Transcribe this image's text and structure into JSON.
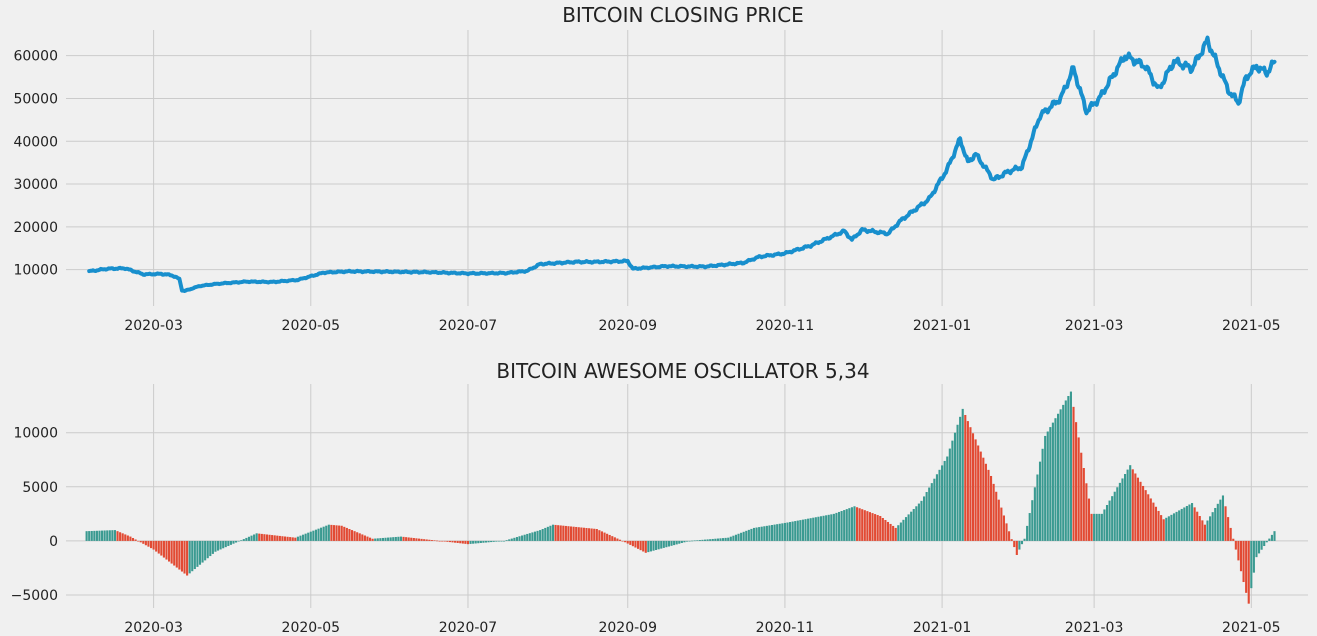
{
  "chart_data": [
    {
      "type": "line",
      "title": "BITCOIN CLOSING PRICE",
      "xlabel": "",
      "ylabel": "",
      "xlim": [
        "2020-01-27",
        "2021-05-23"
      ],
      "ylim": [
        1500,
        66000
      ],
      "grid": true,
      "color": "#188fcd",
      "xticks": [
        "2020-03",
        "2020-05",
        "2020-07",
        "2020-09",
        "2020-11",
        "2021-01",
        "2021-03",
        "2021-05"
      ],
      "yticks": [
        10000,
        20000,
        30000,
        40000,
        50000,
        60000
      ],
      "series": [
        {
          "x": [
            "2020-02-05",
            "2020-02-12",
            "2020-02-19",
            "2020-02-26",
            "2020-03-04",
            "2020-03-08",
            "2020-03-11",
            "2020-03-12",
            "2020-03-13",
            "2020-03-19",
            "2020-03-26",
            "2020-04-06",
            "2020-04-16",
            "2020-04-26",
            "2020-05-06",
            "2020-05-16",
            "2020-06-01",
            "2020-06-16",
            "2020-07-01",
            "2020-07-16",
            "2020-07-24",
            "2020-07-29",
            "2020-08-12",
            "2020-08-20",
            "2020-09-01",
            "2020-09-03",
            "2020-09-16",
            "2020-10-01",
            "2020-10-16",
            "2020-10-22",
            "2020-11-01",
            "2020-11-11",
            "2020-11-24",
            "2020-11-27",
            "2020-12-01",
            "2020-12-11",
            "2020-12-16",
            "2020-12-21",
            "2020-12-27",
            "2021-01-03",
            "2021-01-08",
            "2021-01-11",
            "2021-01-14",
            "2021-01-21",
            "2021-01-27",
            "2021-02-01",
            "2021-02-08",
            "2021-02-16",
            "2021-02-21",
            "2021-02-26",
            "2021-03-03",
            "2021-03-13",
            "2021-03-21",
            "2021-03-26",
            "2021-04-01",
            "2021-04-08",
            "2021-04-14",
            "2021-04-22",
            "2021-04-26",
            "2021-04-29",
            "2021-05-03",
            "2021-05-07",
            "2021-05-10"
          ],
          "y": [
            9600,
            10200,
            10300,
            8900,
            9000,
            8700,
            7800,
            5200,
            5000,
            6200,
            6700,
            7200,
            7100,
            7600,
            9300,
            9600,
            9500,
            9400,
            9100,
            9200,
            9700,
            11300,
            11800,
            11800,
            12000,
            10200,
            10800,
            10700,
            11600,
            13000,
            13800,
            15600,
            19000,
            17000,
            19300,
            18400,
            21500,
            23800,
            26500,
            33500,
            40500,
            35000,
            37000,
            31000,
            33000,
            34000,
            46000,
            50000,
            57000,
            47000,
            50000,
            60000,
            57500,
            52000,
            58700,
            57000,
            63500,
            52000,
            49000,
            55000,
            57500,
            56000,
            58500
          ]
        }
      ]
    },
    {
      "type": "bar",
      "title": "BITCOIN AWESOME OSCILLATOR 5,34",
      "xlabel": "",
      "ylabel": "",
      "xlim": [
        "2020-01-27",
        "2021-05-23"
      ],
      "ylim": [
        -6200,
        14500
      ],
      "grid": true,
      "colors": {
        "rising": "#3a9a91",
        "falling": "#e24a33"
      },
      "xticks": [
        "2020-03",
        "2020-05",
        "2020-07",
        "2020-09",
        "2020-11",
        "2021-01",
        "2021-03",
        "2021-05"
      ],
      "yticks": [
        -5000,
        0,
        5000,
        10000
      ],
      "series": [
        {
          "x": [
            "2020-02-04",
            "2020-02-15",
            "2020-02-21",
            "2020-03-01",
            "2020-03-14",
            "2020-03-25",
            "2020-04-10",
            "2020-04-25",
            "2020-05-08",
            "2020-05-13",
            "2020-05-25",
            "2020-06-05",
            "2020-06-20",
            "2020-07-01",
            "2020-07-15",
            "2020-07-29",
            "2020-08-03",
            "2020-08-20",
            "2020-08-30",
            "2020-09-08",
            "2020-09-25",
            "2020-10-10",
            "2020-10-20",
            "2020-11-02",
            "2020-11-20",
            "2020-11-28",
            "2020-12-08",
            "2020-12-14",
            "2020-12-24",
            "2021-01-03",
            "2021-01-09",
            "2021-01-20",
            "2021-01-30",
            "2021-02-02",
            "2021-02-10",
            "2021-02-20",
            "2021-02-28",
            "2021-03-04",
            "2021-03-15",
            "2021-03-28",
            "2021-04-08",
            "2021-04-13",
            "2021-04-20",
            "2021-04-30",
            "2021-05-03",
            "2021-05-10"
          ],
          "y": [
            900,
            1000,
            400,
            -800,
            -3200,
            -1000,
            700,
            300,
            1500,
            1400,
            200,
            400,
            0,
            -300,
            0,
            1000,
            1500,
            1100,
            0,
            -1100,
            0,
            300,
            1200,
            1700,
            2500,
            3200,
            2300,
            1200,
            3700,
            7800,
            12200,
            6000,
            -1300,
            200,
            9700,
            13800,
            2500,
            2500,
            7000,
            2000,
            3500,
            1500,
            4200,
            -5800,
            -1500,
            900
          ]
        }
      ]
    }
  ]
}
